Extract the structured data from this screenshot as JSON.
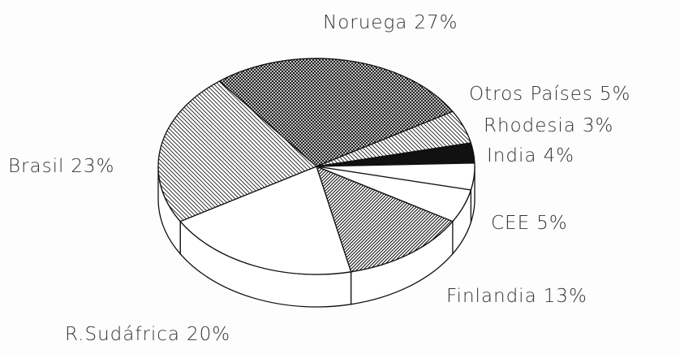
{
  "chart_data": {
    "type": "pie3d",
    "categories": [
      "Noruega",
      "Otros Países",
      "Rhodesia",
      "India",
      "CEE",
      "Finlandia",
      "R.Sudáfrica",
      "Brasil"
    ],
    "values": [
      27,
      5,
      3,
      4,
      5,
      13,
      20,
      23
    ],
    "value_labels": [
      "27%",
      "5%",
      "3%",
      "4%",
      "5%",
      "13%",
      "20%",
      "23%"
    ],
    "hatches": [
      "crosshatch",
      "backslash",
      "solid",
      "none",
      "none",
      "slash",
      "none",
      "backslash"
    ],
    "color": "#111111"
  }
}
